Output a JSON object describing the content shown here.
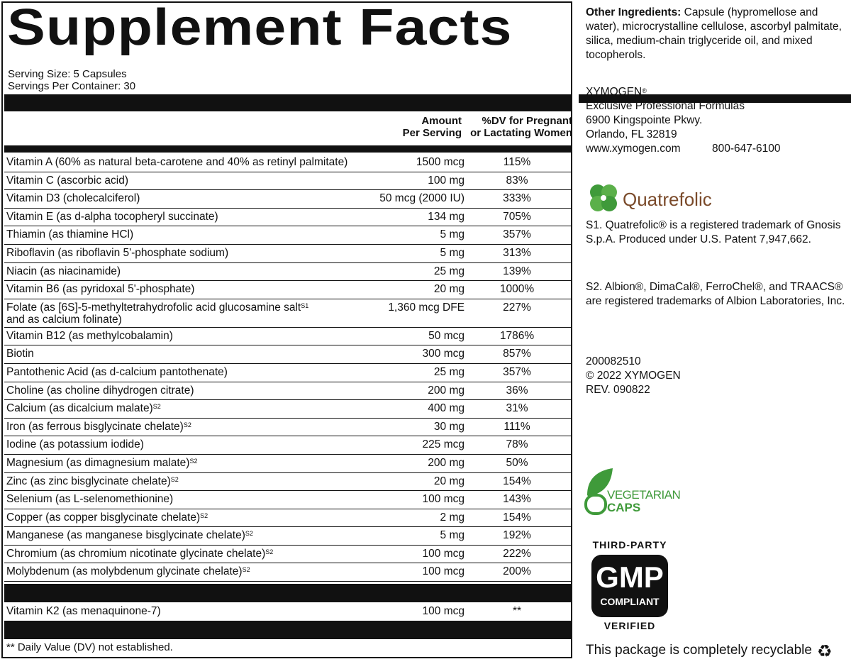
{
  "panel": {
    "title": "Supplement Facts",
    "serving_size": "Serving Size: 5 Capsules",
    "servings_per_container": "Servings Per Container: 30",
    "col_amount_1": "Amount",
    "col_amount_2": "Per Serving",
    "col_dv_1": "%DV for Pregnant",
    "col_dv_2": "or Lactating Women",
    "rows": [
      {
        "name": "Vitamin A (60% as natural beta-carotene and 40% as retinyl palmitate)",
        "amount": "1500 mcg",
        "dv": "115%"
      },
      {
        "name": "Vitamin C (ascorbic acid)",
        "amount": "100 mg",
        "dv": "83%"
      },
      {
        "name": "Vitamin D3 (cholecalciferol)",
        "amount": "50 mcg (2000 IU)",
        "dv": "333%"
      },
      {
        "name": "Vitamin E (as d-alpha tocopheryl succinate)",
        "amount": "134 mg",
        "dv": "705%"
      },
      {
        "name": "Thiamin (as thiamine HCl)",
        "amount": "5 mg",
        "dv": "357%"
      },
      {
        "name": "Riboflavin (as riboflavin 5'-phosphate sodium)",
        "amount": "5 mg",
        "dv": "313%"
      },
      {
        "name": "Niacin (as niacinamide)",
        "amount": "25 mg",
        "dv": "139%"
      },
      {
        "name": "Vitamin B6 (as pyridoxal 5'-phosphate)",
        "amount": "20 mg",
        "dv": "1000%"
      },
      {
        "name": "Folate (as [6S]-5-methyltetrahydrofolic acid glucosamine salt",
        "sup": "S1",
        "name2": "and as calcium folinate)",
        "amount": "1,360 mcg DFE",
        "dv": "227%"
      },
      {
        "name": "Vitamin B12 (as methylcobalamin)",
        "amount": "50 mcg",
        "dv": "1786%"
      },
      {
        "name": "Biotin",
        "amount": "300 mcg",
        "dv": "857%"
      },
      {
        "name": "Pantothenic Acid (as d-calcium pantothenate)",
        "amount": "25 mg",
        "dv": "357%"
      },
      {
        "name": "Choline (as choline dihydrogen citrate)",
        "amount": "200 mg",
        "dv": "36%"
      },
      {
        "name": "Calcium (as dicalcium malate)",
        "sup": "S2",
        "amount": "400 mg",
        "dv": "31%"
      },
      {
        "name": "Iron (as ferrous bisglycinate chelate)",
        "sup": "S2",
        "amount": "30 mg",
        "dv": "111%"
      },
      {
        "name": "Iodine (as potassium iodide)",
        "amount": "225 mcg",
        "dv": "78%"
      },
      {
        "name": "Magnesium (as dimagnesium malate)",
        "sup": "S2",
        "amount": "200 mg",
        "dv": "50%"
      },
      {
        "name": "Zinc (as zinc bisglycinate chelate)",
        "sup": "S2",
        "amount": "20 mg",
        "dv": "154%"
      },
      {
        "name": "Selenium (as L-selenomethionine)",
        "amount": "100 mcg",
        "dv": "143%"
      },
      {
        "name": "Copper (as copper bisglycinate chelate)",
        "sup": "S2",
        "amount": "2 mg",
        "dv": "154%"
      },
      {
        "name": "Manganese (as manganese bisglycinate chelate)",
        "sup": "S2",
        "amount": "5 mg",
        "dv": "192%"
      },
      {
        "name": "Chromium (as chromium nicotinate glycinate chelate)",
        "sup": "S2",
        "amount": "100 mcg",
        "dv": "222%"
      },
      {
        "name": "Molybdenum (as molybdenum glycinate chelate)",
        "sup": "S2",
        "amount": "100 mcg",
        "dv": "200%"
      }
    ],
    "k2": {
      "name": "Vitamin K2 (as menaquinone-7)",
      "amount": "100 mcg",
      "dv": "**"
    },
    "footnote": "** Daily Value (DV) not established."
  },
  "side": {
    "other_label": "Other Ingredients:",
    "other_text": " Capsule (hypromellose and water), microcrystalline cellulose, ascorbyl palmitate, silica, medium-chain triglyceride oil, and mixed tocopherols.",
    "brand": "XYMOGEN",
    "reg": "®",
    "brand_line2": "Exclusive Professional Formulas",
    "address1": "6900 Kingspointe Pkwy.",
    "address2": "Orlando, FL 32819",
    "website": "www.xymogen.com",
    "phone": "800-647-6100",
    "quatrefolic_logo": "Quatrefolic",
    "s1_note": "S1. Quatrefolic® is a registered trademark of Gnosis S.p.A. Produced under U.S. Patent 7,947,662.",
    "s2_note": "S2. Albion®, DimaCal®, FerroChel®, and TRAACS® are registered trademarks of Albion Laboratories, Inc.",
    "code": "200082510",
    "copyright": "© 2022 XYMOGEN",
    "rev": "REV. 090822",
    "veg_1": "VEGETARIAN",
    "veg_2": "CAPS",
    "gmp_top": "THIRD-PARTY",
    "gmp_main": "GMP",
    "gmp_sub": "COMPLIANT",
    "gmp_bottom": "VERIFIED",
    "recycle": "This package is completely recyclable"
  },
  "colors": {
    "ink": "#111111",
    "green": "#3f9a3a",
    "brown": "#7a4a2a"
  }
}
